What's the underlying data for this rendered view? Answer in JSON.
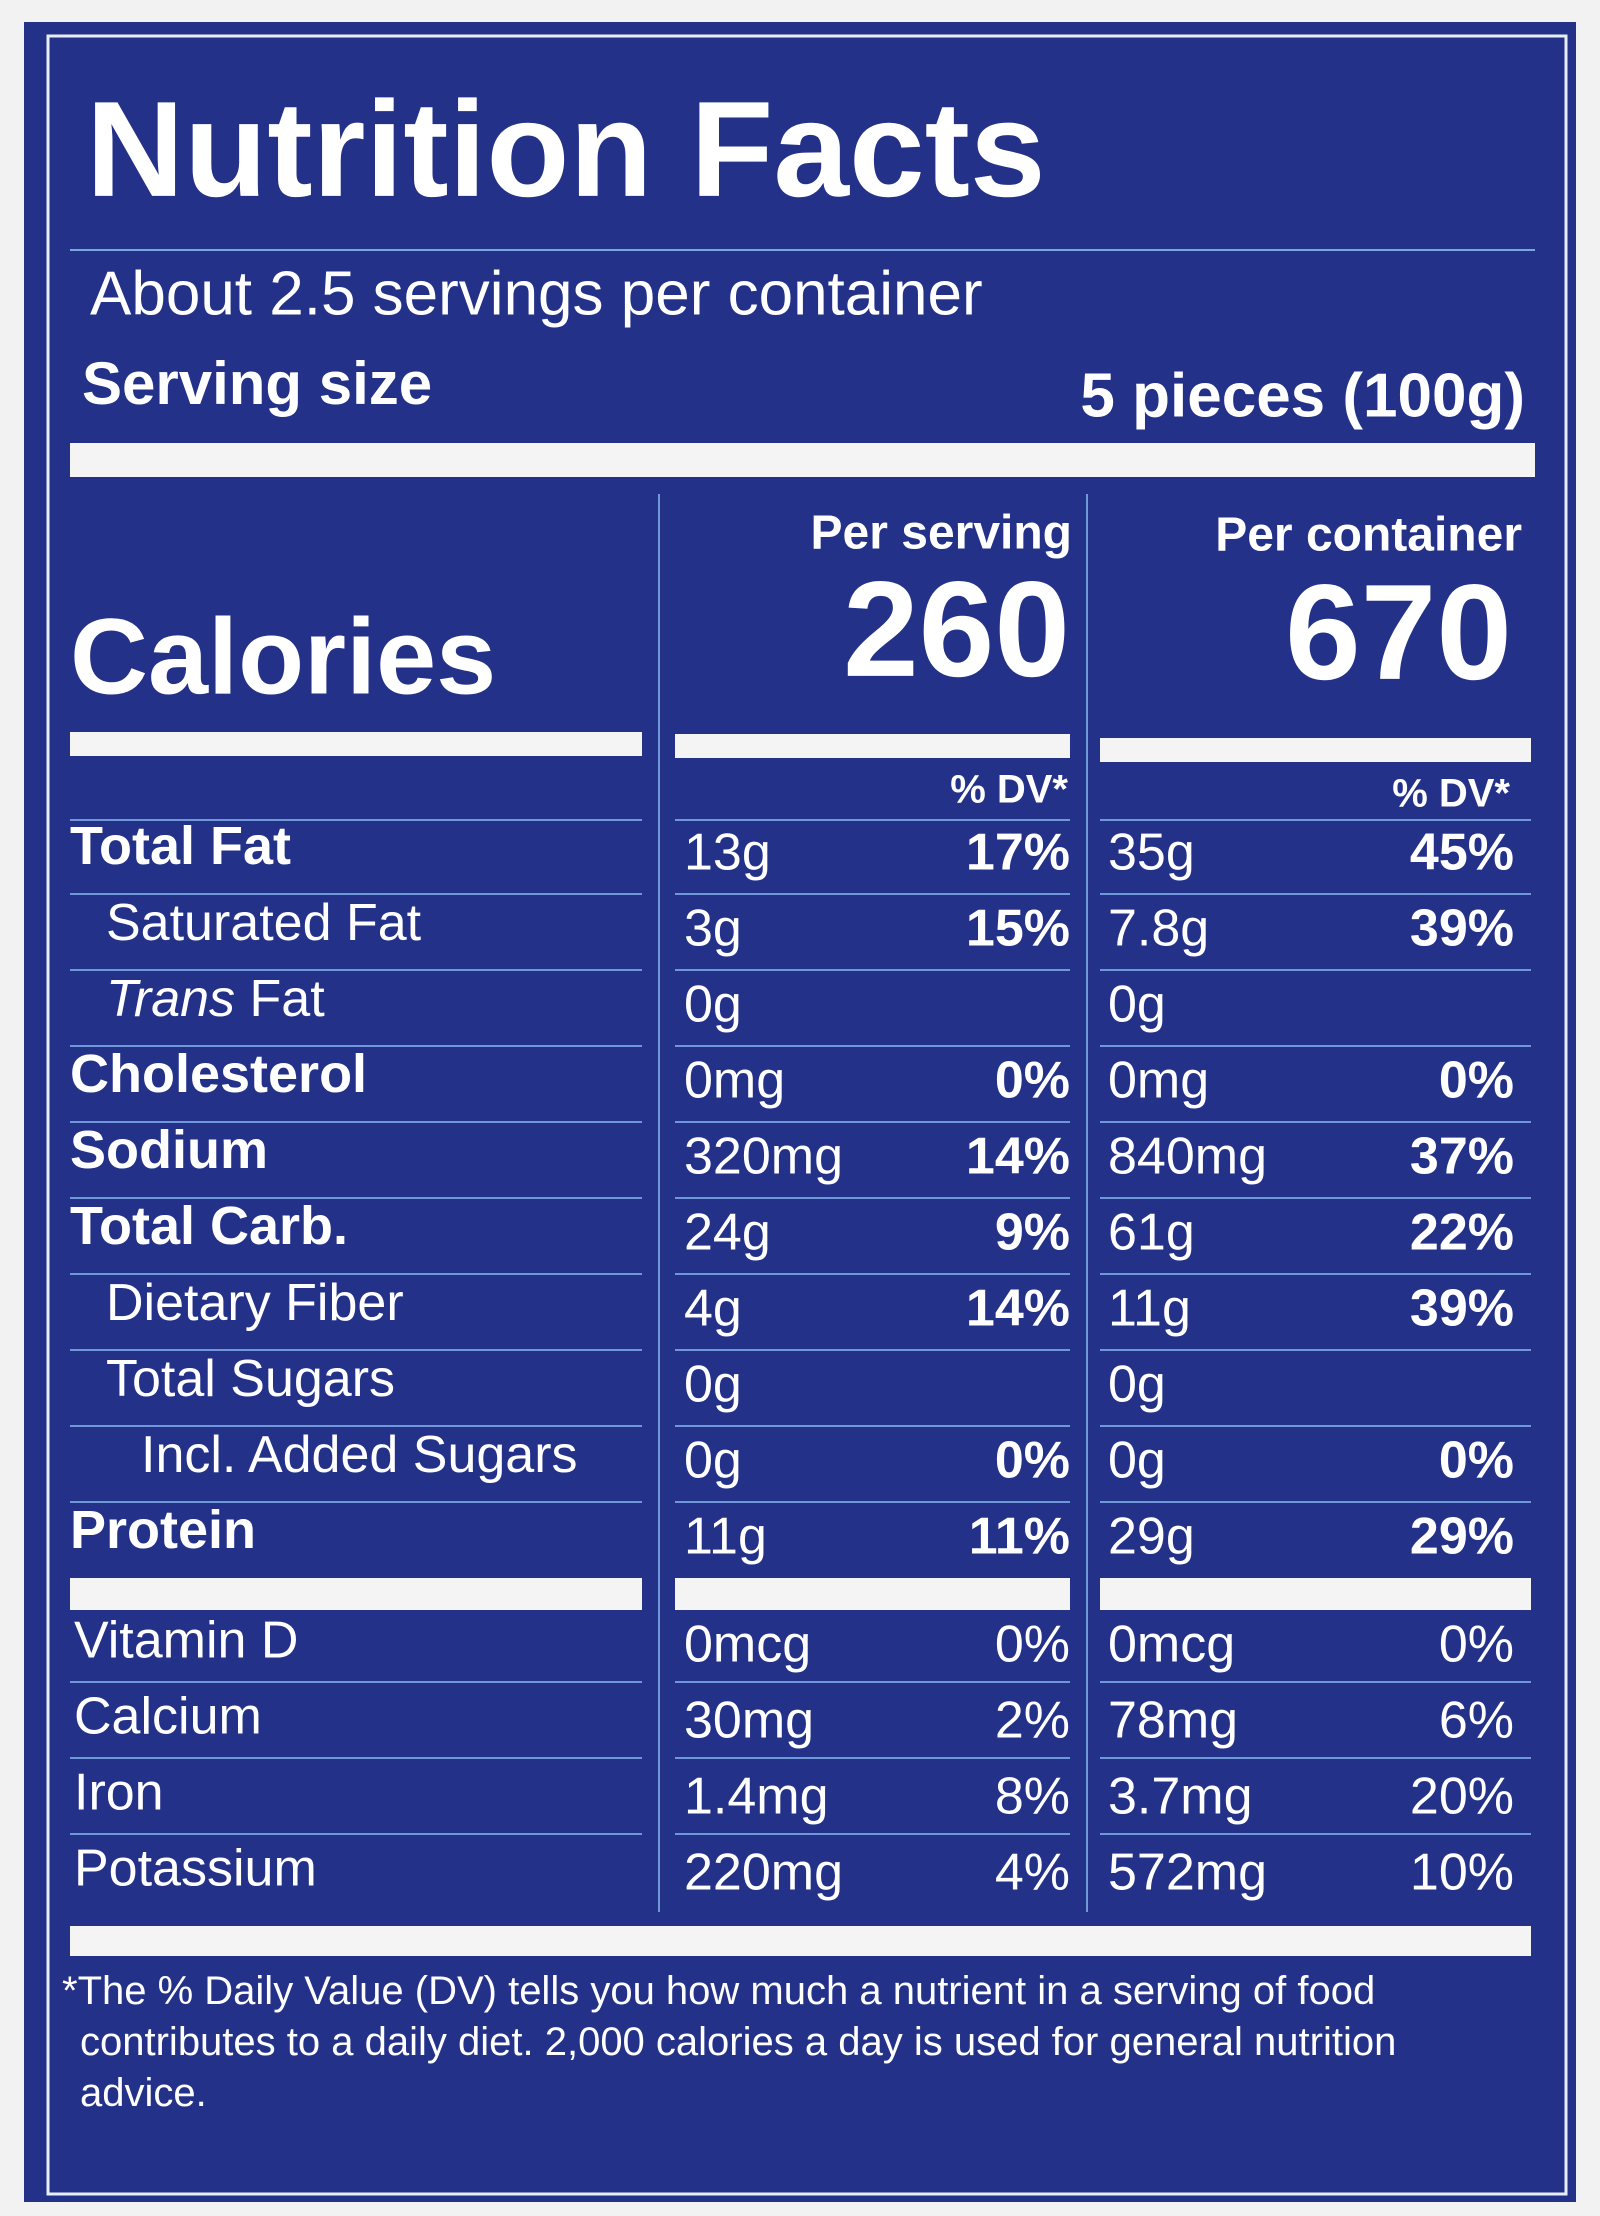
{
  "title": "Nutrition Facts",
  "servings_per_container": "About 2.5 servings per container",
  "serving_size": {
    "label": "Serving size",
    "value": "5 pieces (100g)"
  },
  "columns": [
    "Per serving",
    "Per container"
  ],
  "calories": {
    "label": "Calories",
    "values": [
      "260",
      "670"
    ]
  },
  "dv_header": "% DV*",
  "nutrients": [
    {
      "name": "Total Fat",
      "bold": true,
      "indent": 0,
      "cells": [
        {
          "amount": "13g",
          "dv": "17%"
        },
        {
          "amount": "35g",
          "dv": "45%"
        }
      ]
    },
    {
      "name": "Saturated Fat",
      "bold": false,
      "indent": 1,
      "cells": [
        {
          "amount": "3g",
          "dv": "15%"
        },
        {
          "amount": "7.8g",
          "dv": "39%"
        }
      ]
    },
    {
      "name_italic": "Trans",
      "name": "Fat",
      "bold": false,
      "indent": 1,
      "cells": [
        {
          "amount": "0g"
        },
        {
          "amount": "0g"
        }
      ]
    },
    {
      "name": "Cholesterol",
      "bold": true,
      "indent": 0,
      "cells": [
        {
          "amount": "0mg",
          "dv": "0%"
        },
        {
          "amount": "0mg",
          "dv": "0%"
        }
      ]
    },
    {
      "name": "Sodium",
      "bold": true,
      "indent": 0,
      "cells": [
        {
          "amount": "320mg",
          "dv": "14%"
        },
        {
          "amount": "840mg",
          "dv": "37%"
        }
      ]
    },
    {
      "name": "Total Carb.",
      "bold": true,
      "indent": 0,
      "cells": [
        {
          "amount": "24g",
          "dv": "9%"
        },
        {
          "amount": "61g",
          "dv": "22%"
        }
      ]
    },
    {
      "name": "Dietary Fiber",
      "bold": false,
      "indent": 1,
      "cells": [
        {
          "amount": "4g",
          "dv": "14%"
        },
        {
          "amount": "11g",
          "dv": "39%"
        }
      ]
    },
    {
      "name": "Total Sugars",
      "bold": false,
      "indent": 1,
      "cells": [
        {
          "amount": "0g"
        },
        {
          "amount": "0g"
        }
      ]
    },
    {
      "name": "Incl. Added Sugars",
      "bold": false,
      "indent": 2,
      "cells": [
        {
          "amount": "0g",
          "dv": "0%"
        },
        {
          "amount": "0g",
          "dv": "0%"
        }
      ]
    },
    {
      "name": "Protein",
      "bold": true,
      "indent": 0,
      "cells": [
        {
          "amount": "11g",
          "dv": "11%"
        },
        {
          "amount": "29g",
          "dv": "29%"
        }
      ]
    }
  ],
  "vitamins": [
    {
      "name": "Vitamin D",
      "cells": [
        {
          "amount": "0mcg",
          "dv": "0%"
        },
        {
          "amount": "0mcg",
          "dv": "0%"
        }
      ]
    },
    {
      "name": "Calcium",
      "cells": [
        {
          "amount": "30mg",
          "dv": "2%"
        },
        {
          "amount": "78mg",
          "dv": "6%"
        }
      ]
    },
    {
      "name": "Iron",
      "cells": [
        {
          "amount": "1.4mg",
          "dv": "8%"
        },
        {
          "amount": "3.7mg",
          "dv": "20%"
        }
      ]
    },
    {
      "name": "Potassium",
      "cells": [
        {
          "amount": "220mg",
          "dv": "4%"
        },
        {
          "amount": "572mg",
          "dv": "10%"
        }
      ]
    }
  ],
  "footnote": "*The % Daily Value (DV) tells you how much a nutrient in a serving of food contributes to a daily diet. 2,000 calories a day is used for general nutrition advice."
}
